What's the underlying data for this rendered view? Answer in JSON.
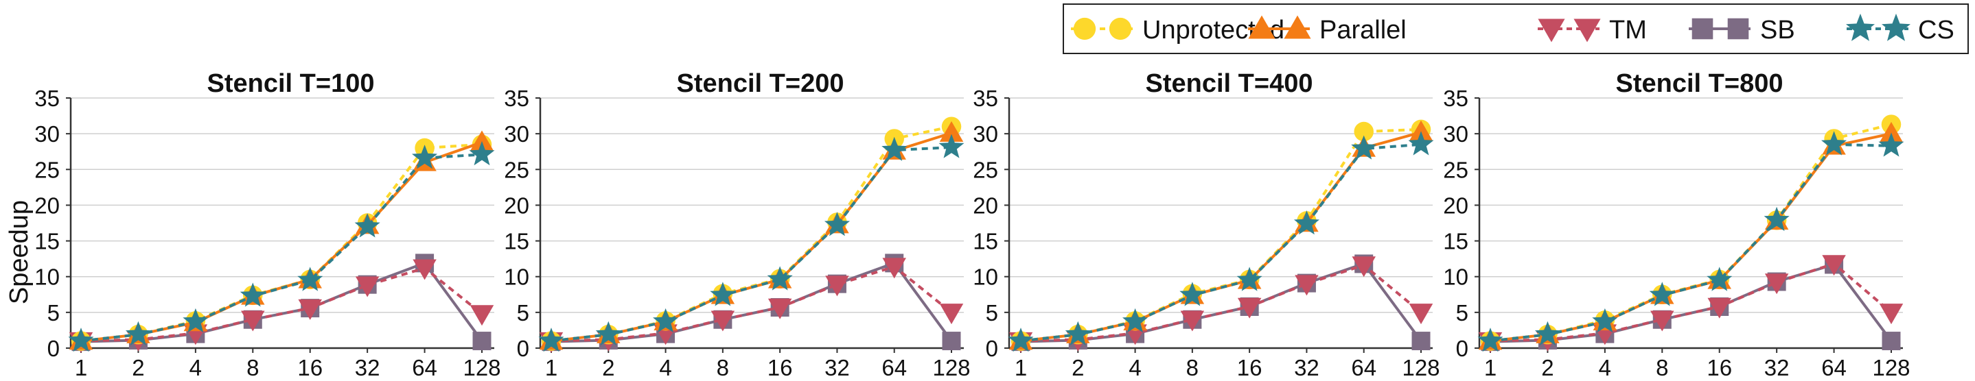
{
  "figure": {
    "ylabel": "Speedup",
    "legend": {
      "placement": "top-right",
      "entries": [
        {
          "name": "Unprotected",
          "color": "#FDD82B",
          "marker": "circle",
          "dash": true
        },
        {
          "name": "Parallel",
          "color": "#F47C15",
          "marker": "triangle-up",
          "dash": false
        },
        {
          "name": "TM",
          "color": "#C44D61",
          "marker": "triangle-down",
          "dash": true
        },
        {
          "name": "SB",
          "color": "#7D6B84",
          "marker": "square",
          "dash": false
        },
        {
          "name": "CS",
          "color": "#2E7F8C",
          "marker": "star",
          "dash": true
        }
      ]
    }
  },
  "chart_data": [
    {
      "type": "line",
      "title": "Stencil T=100",
      "x": [
        "1",
        "2",
        "4",
        "8",
        "16",
        "32",
        "64",
        "128"
      ],
      "ylim": [
        0,
        35
      ],
      "yticks": [
        0,
        5,
        10,
        15,
        20,
        25,
        30,
        35
      ],
      "grid": true,
      "series": [
        {
          "name": "Unprotected",
          "values": [
            1.0,
            1.9,
            3.8,
            7.4,
            9.6,
            17.5,
            28.0,
            28.5
          ]
        },
        {
          "name": "Parallel",
          "values": [
            1.0,
            1.9,
            3.6,
            7.3,
            9.6,
            17.2,
            26.0,
            28.8
          ]
        },
        {
          "name": "TM",
          "values": [
            1.0,
            1.2,
            2.1,
            4.0,
            5.6,
            8.8,
            11.2,
            4.8
          ]
        },
        {
          "name": "SB",
          "values": [
            0.9,
            1.1,
            2.0,
            4.0,
            5.6,
            8.9,
            11.9,
            1.0
          ]
        },
        {
          "name": "CS",
          "values": [
            1.0,
            1.9,
            3.7,
            7.3,
            9.5,
            17.0,
            26.6,
            27.1
          ]
        }
      ]
    },
    {
      "type": "line",
      "title": "Stencil T=200",
      "x": [
        "1",
        "2",
        "4",
        "8",
        "16",
        "32",
        "64",
        "128"
      ],
      "ylim": [
        0,
        35
      ],
      "yticks": [
        0,
        5,
        10,
        15,
        20,
        25,
        30,
        35
      ],
      "grid": true,
      "series": [
        {
          "name": "Unprotected",
          "values": [
            1.0,
            1.9,
            3.8,
            7.6,
            9.7,
            17.6,
            29.3,
            31.0
          ]
        },
        {
          "name": "Parallel",
          "values": [
            1.0,
            1.9,
            3.7,
            7.4,
            9.6,
            17.3,
            27.6,
            30.1
          ]
        },
        {
          "name": "TM",
          "values": [
            1.0,
            1.2,
            2.1,
            4.0,
            5.7,
            8.9,
            11.4,
            5.0
          ]
        },
        {
          "name": "SB",
          "values": [
            0.9,
            1.1,
            2.0,
            4.0,
            5.7,
            9.0,
            11.9,
            1.0
          ]
        },
        {
          "name": "CS",
          "values": [
            1.0,
            1.9,
            3.7,
            7.4,
            9.6,
            17.2,
            27.7,
            28.1
          ]
        }
      ]
    },
    {
      "type": "line",
      "title": "Stencil T=400",
      "x": [
        "1",
        "2",
        "4",
        "8",
        "16",
        "32",
        "64",
        "128"
      ],
      "ylim": [
        0,
        35
      ],
      "yticks": [
        0,
        5,
        10,
        15,
        20,
        25,
        30,
        35
      ],
      "grid": true,
      "series": [
        {
          "name": "Unprotected",
          "values": [
            1.0,
            1.9,
            3.8,
            7.6,
            9.6,
            17.8,
            30.3,
            30.6
          ]
        },
        {
          "name": "Parallel",
          "values": [
            1.0,
            1.9,
            3.7,
            7.4,
            9.5,
            17.5,
            28.0,
            30.2
          ]
        },
        {
          "name": "TM",
          "values": [
            1.0,
            1.2,
            2.1,
            4.0,
            5.8,
            9.0,
            11.6,
            5.0
          ]
        },
        {
          "name": "SB",
          "values": [
            0.9,
            1.1,
            2.0,
            4.0,
            5.8,
            9.1,
            11.8,
            1.0
          ]
        },
        {
          "name": "CS",
          "values": [
            1.0,
            1.9,
            3.7,
            7.4,
            9.5,
            17.4,
            27.9,
            28.5
          ]
        }
      ]
    },
    {
      "type": "line",
      "title": "Stencil T=800",
      "x": [
        "1",
        "2",
        "4",
        "8",
        "16",
        "32",
        "64",
        "128"
      ],
      "ylim": [
        0,
        35
      ],
      "yticks": [
        0,
        5,
        10,
        15,
        20,
        25,
        30,
        35
      ],
      "grid": true,
      "series": [
        {
          "name": "Unprotected",
          "values": [
            1.0,
            1.9,
            3.9,
            7.5,
            9.6,
            17.9,
            29.3,
            31.3
          ]
        },
        {
          "name": "Parallel",
          "values": [
            1.0,
            1.9,
            3.7,
            7.4,
            9.5,
            17.8,
            28.3,
            30.0
          ]
        },
        {
          "name": "TM",
          "values": [
            1.0,
            1.2,
            2.1,
            4.0,
            5.8,
            9.2,
            11.8,
            5.0
          ]
        },
        {
          "name": "SB",
          "values": [
            0.9,
            1.1,
            2.0,
            4.0,
            5.8,
            9.3,
            11.7,
            1.0
          ]
        },
        {
          "name": "CS",
          "values": [
            1.0,
            1.9,
            3.7,
            7.4,
            9.5,
            17.9,
            28.5,
            28.3
          ]
        }
      ]
    }
  ]
}
